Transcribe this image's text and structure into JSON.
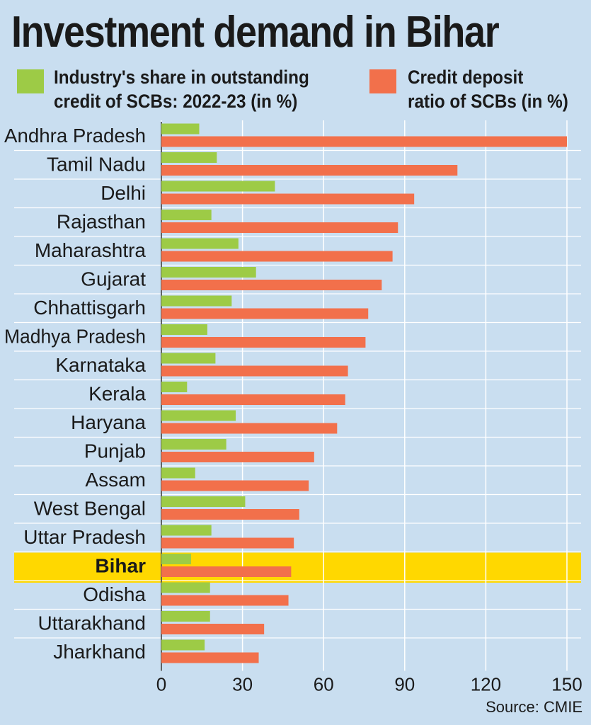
{
  "title": "Investment demand in Bihar",
  "legend": [
    {
      "label_line1": "Industry's share in outstanding",
      "label_line2": "credit of SCBs: 2022-23 (in %)",
      "color": "#9dcb46"
    },
    {
      "label_line1": "Credit deposit",
      "label_line2": "ratio of SCBs (in %)",
      "color": "#f2704b"
    }
  ],
  "source": "Source: CMIE",
  "highlight_color": "#ffd800",
  "chart_data": {
    "type": "bar",
    "orientation": "horizontal",
    "title": "Investment demand in Bihar",
    "categories": [
      "Andhra Pradesh",
      "Tamil Nadu",
      "Delhi",
      "Rajasthan",
      "Maharashtra",
      "Gujarat",
      "Chhattisgarh",
      "Madhya Pradesh",
      "Karnataka",
      "Kerala",
      "Haryana",
      "Punjab",
      "Assam",
      "West Bengal",
      "Uttar Pradesh",
      "Bihar",
      "Odisha",
      "Uttarakhand",
      "Jharkhand"
    ],
    "highlight": "Bihar",
    "series": [
      {
        "name": "Industry's share in outstanding credit of SCBs: 2022-23 (in %)",
        "color": "#9dcb46",
        "values": [
          14,
          20.5,
          42,
          18.5,
          28.5,
          35,
          26,
          17,
          20,
          9.5,
          27.5,
          24,
          12.5,
          31,
          18.5,
          11,
          18,
          18,
          16
        ]
      },
      {
        "name": "Credit deposit ratio of SCBs (in %)",
        "color": "#f2704b",
        "values": [
          150,
          109.5,
          93.5,
          87.5,
          85.5,
          81.5,
          76.5,
          75.5,
          69,
          68,
          65,
          56.5,
          54.5,
          51,
          49,
          48,
          47,
          38,
          36
        ]
      }
    ],
    "xlim": [
      0,
      150
    ],
    "xticks": [
      0,
      30,
      60,
      90,
      120,
      150
    ],
    "grid": true
  }
}
